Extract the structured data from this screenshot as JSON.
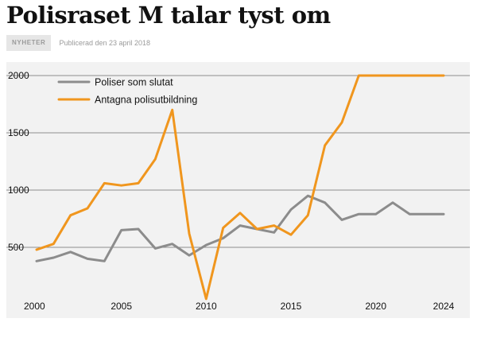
{
  "article": {
    "headline": "Polisraset M talar tyst om",
    "category": "NYHETER",
    "published": "Publicerad den 23 april 2018"
  },
  "chart_data": {
    "type": "line",
    "title": "",
    "xlabel": "",
    "ylabel": "",
    "x": [
      2000,
      2001,
      2002,
      2003,
      2004,
      2005,
      2006,
      2007,
      2008,
      2009,
      2010,
      2011,
      2012,
      2013,
      2014,
      2015,
      2016,
      2017,
      2018,
      2019,
      2020,
      2021,
      2022,
      2023,
      2024
    ],
    "xlim": [
      2000,
      2024
    ],
    "ylim": [
      0,
      2000
    ],
    "x_ticks": [
      2000,
      2005,
      2010,
      2015,
      2020,
      2024
    ],
    "y_ticks": [
      500,
      1000,
      1500,
      2000
    ],
    "grid": "horizontal",
    "legend_position": "top-left",
    "series": [
      {
        "name": "Poliser som slutat",
        "color": "#8c8c8c",
        "values": [
          380,
          410,
          460,
          400,
          380,
          650,
          660,
          490,
          530,
          430,
          520,
          580,
          690,
          660,
          630,
          830,
          950,
          890,
          740,
          790,
          790,
          890,
          790,
          790,
          790
        ]
      },
      {
        "name": "Antagna polisutbildning",
        "color": "#f0961e",
        "values": [
          480,
          530,
          780,
          840,
          1060,
          1040,
          1060,
          1270,
          1700,
          620,
          50,
          670,
          800,
          660,
          690,
          610,
          780,
          1390,
          1590,
          2000,
          2000,
          2000,
          2000,
          2000,
          2000
        ]
      }
    ]
  }
}
